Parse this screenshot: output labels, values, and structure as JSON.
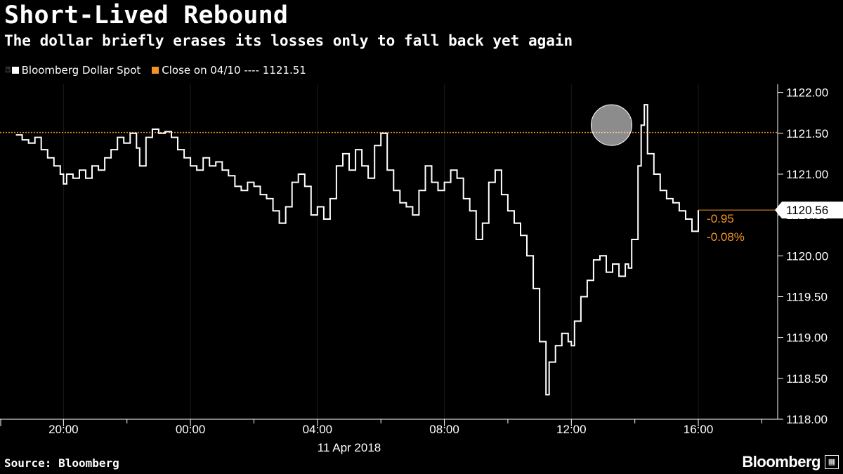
{
  "header": {
    "title": "Short-Lived Rebound",
    "subtitle": "The dollar briefly erases its losses only to fall back yet again"
  },
  "legend": {
    "series_label": "Bloomberg Dollar Spot",
    "close_label": "Close on 04/10 ---- 1121.51"
  },
  "footer": {
    "source": "Source: Bloomberg",
    "brand": "Bloomberg"
  },
  "annotations": {
    "last_value": "1120.56",
    "change_abs": "-0.95",
    "change_pct": "-0.08%"
  },
  "colors": {
    "line": "#ffffff",
    "close_line": "#f29325",
    "background": "#000000",
    "axis": "#ffffff"
  },
  "icons": [
    "line-series-icon",
    "highlight-circle",
    "bloomberg-logo-icon"
  ],
  "chart_data": {
    "type": "line",
    "x_unit": "hour of day",
    "x_ticks": [
      {
        "label": "20:00",
        "x": 20
      },
      {
        "label": "00:00",
        "x": 24
      },
      {
        "label": "04:00",
        "x": 28
      },
      {
        "label": "08:00",
        "x": 32
      },
      {
        "label": "12:00",
        "x": 36
      },
      {
        "label": "16:00",
        "x": 40
      }
    ],
    "x_minor_ticks": [
      22,
      26,
      30,
      34,
      38,
      42
    ],
    "date_label": "11 Apr 2018",
    "date_label_x": 29,
    "xlim": [
      18,
      42.5
    ],
    "ylim": [
      1118,
      1122.1
    ],
    "y_ticks": [
      1118.0,
      1118.5,
      1119.0,
      1119.5,
      1120.0,
      1120.5,
      1121.0,
      1121.5,
      1122.0
    ],
    "y_tick_labels": [
      "1118.00",
      "1118.50",
      "1119.00",
      "1119.50",
      "1120.00",
      "1120.50",
      "1121.00",
      "1121.50",
      "1122.00"
    ],
    "close_prev": 1121.51,
    "last": 1120.56,
    "highlight": {
      "x": 37.2,
      "y": 1121.6
    },
    "series": [
      {
        "name": "Bloomberg Dollar Spot",
        "points": [
          [
            18.5,
            1121.48
          ],
          [
            18.7,
            1121.42
          ],
          [
            18.9,
            1121.38
          ],
          [
            19.1,
            1121.45
          ],
          [
            19.3,
            1121.3
          ],
          [
            19.5,
            1121.2
          ],
          [
            19.7,
            1121.1
          ],
          [
            19.9,
            1121.0
          ],
          [
            20.0,
            1120.88
          ],
          [
            20.1,
            1121.0
          ],
          [
            20.3,
            1120.95
          ],
          [
            20.5,
            1121.05
          ],
          [
            20.7,
            1120.95
          ],
          [
            20.9,
            1121.1
          ],
          [
            21.1,
            1121.05
          ],
          [
            21.3,
            1121.2
          ],
          [
            21.5,
            1121.3
          ],
          [
            21.7,
            1121.45
          ],
          [
            21.9,
            1121.38
          ],
          [
            22.1,
            1121.5
          ],
          [
            22.3,
            1121.32
          ],
          [
            22.4,
            1121.1
          ],
          [
            22.6,
            1121.45
          ],
          [
            22.8,
            1121.55
          ],
          [
            23.0,
            1121.5
          ],
          [
            23.2,
            1121.52
          ],
          [
            23.4,
            1121.45
          ],
          [
            23.6,
            1121.3
          ],
          [
            23.8,
            1121.2
          ],
          [
            24.0,
            1121.1
          ],
          [
            24.2,
            1121.05
          ],
          [
            24.4,
            1121.2
          ],
          [
            24.6,
            1121.1
          ],
          [
            24.8,
            1121.15
          ],
          [
            25.0,
            1121.05
          ],
          [
            25.2,
            1120.98
          ],
          [
            25.4,
            1120.85
          ],
          [
            25.6,
            1120.8
          ],
          [
            25.8,
            1120.9
          ],
          [
            26.0,
            1120.85
          ],
          [
            26.2,
            1120.75
          ],
          [
            26.4,
            1120.7
          ],
          [
            26.6,
            1120.55
          ],
          [
            26.8,
            1120.4
          ],
          [
            27.0,
            1120.6
          ],
          [
            27.2,
            1120.9
          ],
          [
            27.4,
            1121.0
          ],
          [
            27.6,
            1120.85
          ],
          [
            27.8,
            1120.5
          ],
          [
            28.0,
            1120.6
          ],
          [
            28.2,
            1120.45
          ],
          [
            28.4,
            1120.7
          ],
          [
            28.6,
            1121.1
          ],
          [
            28.8,
            1121.25
          ],
          [
            29.0,
            1121.05
          ],
          [
            29.2,
            1121.3
          ],
          [
            29.4,
            1121.1
          ],
          [
            29.6,
            1120.95
          ],
          [
            29.8,
            1121.35
          ],
          [
            30.0,
            1121.5
          ],
          [
            30.2,
            1121.05
          ],
          [
            30.4,
            1120.8
          ],
          [
            30.6,
            1120.65
          ],
          [
            30.8,
            1120.6
          ],
          [
            31.0,
            1120.5
          ],
          [
            31.2,
            1120.8
          ],
          [
            31.4,
            1121.1
          ],
          [
            31.6,
            1120.9
          ],
          [
            31.8,
            1120.8
          ],
          [
            32.0,
            1120.9
          ],
          [
            32.2,
            1121.05
          ],
          [
            32.4,
            1120.95
          ],
          [
            32.6,
            1120.7
          ],
          [
            32.8,
            1120.55
          ],
          [
            33.0,
            1120.2
          ],
          [
            33.2,
            1120.4
          ],
          [
            33.4,
            1120.9
          ],
          [
            33.6,
            1121.05
          ],
          [
            33.8,
            1120.75
          ],
          [
            34.0,
            1120.55
          ],
          [
            34.2,
            1120.4
          ],
          [
            34.4,
            1120.25
          ],
          [
            34.6,
            1120.0
          ],
          [
            34.8,
            1119.6
          ],
          [
            35.0,
            1118.95
          ],
          [
            35.2,
            1118.3
          ],
          [
            35.3,
            1118.7
          ],
          [
            35.5,
            1118.9
          ],
          [
            35.7,
            1119.05
          ],
          [
            35.9,
            1118.95
          ],
          [
            36.0,
            1118.9
          ],
          [
            36.1,
            1119.2
          ],
          [
            36.3,
            1119.5
          ],
          [
            36.5,
            1119.7
          ],
          [
            36.7,
            1119.95
          ],
          [
            36.9,
            1120.0
          ],
          [
            37.1,
            1119.8
          ],
          [
            37.3,
            1119.9
          ],
          [
            37.5,
            1119.75
          ],
          [
            37.7,
            1119.9
          ],
          [
            37.8,
            1119.85
          ],
          [
            37.9,
            1120.2
          ],
          [
            38.1,
            1121.1
          ],
          [
            38.2,
            1121.6
          ],
          [
            38.3,
            1121.85
          ],
          [
            38.4,
            1121.25
          ],
          [
            38.6,
            1121.0
          ],
          [
            38.8,
            1120.8
          ],
          [
            39.0,
            1120.7
          ],
          [
            39.2,
            1120.65
          ],
          [
            39.4,
            1120.55
          ],
          [
            39.6,
            1120.45
          ],
          [
            39.8,
            1120.3
          ],
          [
            40.0,
            1120.56
          ]
        ]
      }
    ]
  }
}
